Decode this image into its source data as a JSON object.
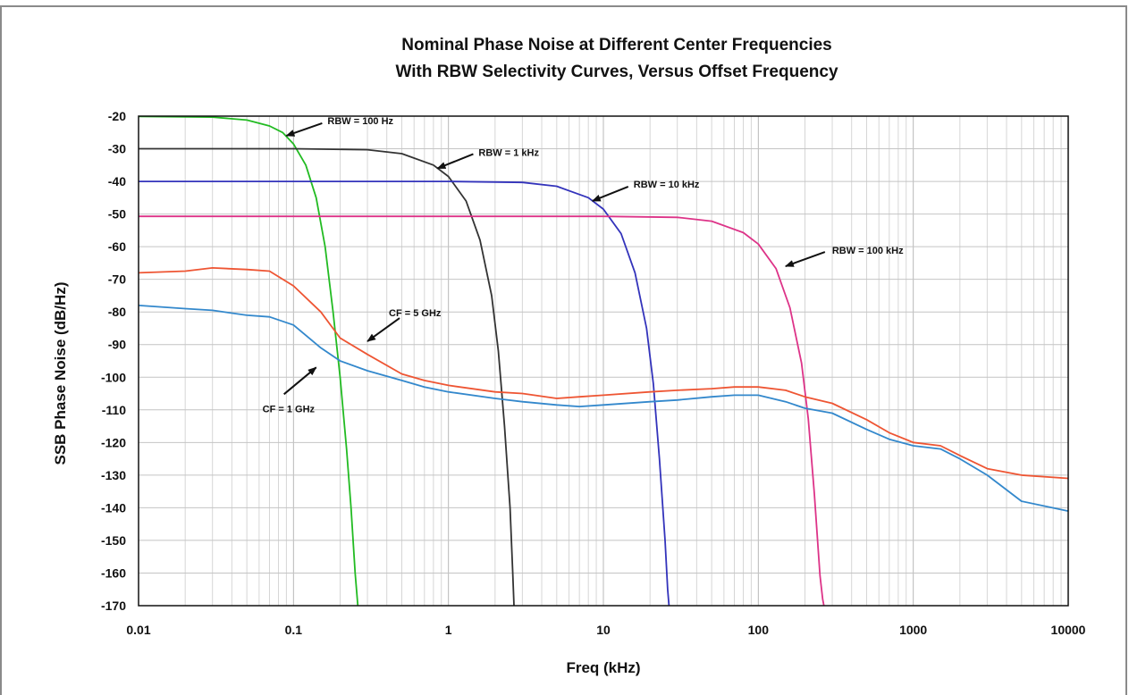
{
  "chart_data": {
    "type": "line",
    "title": "Nominal Phase Noise at Different Center Frequencies",
    "subtitle": "With RBW Selectivity Curves,  Versus Offset Frequency",
    "xlabel": "Freq (kHz)",
    "ylabel": "SSB Phase Noise (dB/Hz)",
    "x_scale": "log",
    "xlim": [
      0.01,
      10000
    ],
    "ylim": [
      -170,
      -20
    ],
    "grid": true,
    "x_tick_labels": [
      "0.01",
      "0.1",
      "1",
      "10",
      "100",
      "1000",
      "10000"
    ],
    "x_ticks": [
      0.01,
      0.1,
      1,
      10,
      100,
      1000,
      10000
    ],
    "y_tick_labels": [
      "-20",
      "-30",
      "-40",
      "-50",
      "-60",
      "-70",
      "-80",
      "-90",
      "-100",
      "-110",
      "-120",
      "-130",
      "-140",
      "-150",
      "-160",
      "-170"
    ],
    "y_ticks": [
      -20,
      -30,
      -40,
      -50,
      -60,
      -70,
      -80,
      -90,
      -100,
      -110,
      -120,
      -130,
      -140,
      -150,
      -160,
      -170
    ],
    "series": [
      {
        "color": "#22bb22",
        "x": [
          0.01,
          0.03,
          0.05,
          0.07,
          0.085,
          0.1,
          0.12,
          0.14,
          0.16,
          0.18,
          0.2,
          0.22,
          0.235,
          0.25,
          0.26
        ],
        "y": [
          -20.1,
          -20.3,
          -21.2,
          -23.0,
          -25.0,
          -28.5,
          -35.0,
          -45.0,
          -60.0,
          -80.0,
          -100.0,
          -122.0,
          -140.0,
          -160.0,
          -170.0
        ]
      },
      {
        "color": "#333333",
        "x": [
          0.01,
          0.1,
          0.3,
          0.5,
          0.8,
          1.0,
          1.3,
          1.6,
          1.9,
          2.1,
          2.3,
          2.5,
          2.6,
          2.65
        ],
        "y": [
          -30.0,
          -30.0,
          -30.3,
          -31.5,
          -35.0,
          -38.5,
          -46.0,
          -58.0,
          -75.0,
          -92.0,
          -115.0,
          -140.0,
          -160.0,
          -170.0
        ]
      },
      {
        "color": "#3333bb",
        "x": [
          0.01,
          1.0,
          3.0,
          5.0,
          8.0,
          10.0,
          13.0,
          16.0,
          19.0,
          21.0,
          23.0,
          25.0,
          26.0,
          26.5
        ],
        "y": [
          -40.0,
          -40.0,
          -40.3,
          -41.5,
          -45.0,
          -48.5,
          -56.0,
          -68.0,
          -85.0,
          -102.0,
          -125.0,
          -150.0,
          -165.0,
          -170.0
        ]
      },
      {
        "color": "#dd3388",
        "x": [
          0.01,
          10.0,
          30.0,
          50.0,
          80.0,
          100.0,
          130.0,
          160.0,
          190.0,
          210.0,
          230.0,
          250.0,
          260.0,
          265.0
        ],
        "y": [
          -50.7,
          -50.7,
          -51.0,
          -52.2,
          -55.7,
          -59.2,
          -66.7,
          -78.7,
          -95.7,
          -112.7,
          -135.7,
          -160.7,
          -168.0,
          -170.0
        ]
      },
      {
        "name": "CF = 5 GHz",
        "color": "#ee5533",
        "x": [
          0.01,
          0.02,
          0.03,
          0.05,
          0.07,
          0.1,
          0.15,
          0.2,
          0.3,
          0.5,
          0.7,
          1.0,
          2.0,
          3.0,
          5.0,
          7.0,
          10.0,
          20.0,
          30.0,
          50.0,
          70.0,
          100.0,
          150.0,
          200.0,
          300.0,
          500.0,
          700.0,
          1000.0,
          1500.0,
          2000.0,
          3000.0,
          5000.0,
          10000.0
        ],
        "y": [
          -68.0,
          -67.5,
          -66.5,
          -67.0,
          -67.5,
          -72.0,
          -80.0,
          -88.0,
          -93.0,
          -99.0,
          -101.0,
          -102.5,
          -104.5,
          -105.0,
          -106.5,
          -106.0,
          -105.5,
          -104.5,
          -104.0,
          -103.5,
          -103.0,
          -103.0,
          -104.0,
          -106.0,
          -108.0,
          -113.0,
          -117.0,
          -120.0,
          -121.0,
          -124.0,
          -128.0,
          -130.0,
          -131.0
        ]
      },
      {
        "name": "CF = 1 GHz",
        "color": "#3388cc",
        "x": [
          0.01,
          0.02,
          0.03,
          0.05,
          0.07,
          0.1,
          0.15,
          0.2,
          0.3,
          0.5,
          0.7,
          1.0,
          2.0,
          3.0,
          5.0,
          7.0,
          10.0,
          20.0,
          30.0,
          50.0,
          70.0,
          100.0,
          150.0,
          200.0,
          300.0,
          500.0,
          700.0,
          1000.0,
          1500.0,
          2000.0,
          3000.0,
          5000.0,
          10000.0
        ],
        "y": [
          -78.0,
          -79.0,
          -79.5,
          -81.0,
          -81.5,
          -84.0,
          -91.0,
          -95.0,
          -98.0,
          -101.0,
          -103.0,
          -104.5,
          -106.5,
          -107.5,
          -108.5,
          -109.0,
          -108.5,
          -107.5,
          -107.0,
          -106.0,
          -105.5,
          -105.5,
          -107.5,
          -109.5,
          -111.0,
          -116.0,
          -119.0,
          -121.0,
          -122.0,
          -125.0,
          -130.0,
          -138.0,
          -141.0
        ]
      }
    ],
    "annotations": [
      {
        "text": "RBW = 100 Hz",
        "x": 0.09,
        "y": -26
      },
      {
        "text": "RBW = 1 kHz",
        "x": 0.85,
        "y": -36
      },
      {
        "text": "RBW = 10 kHz",
        "x": 8.5,
        "y": -46
      },
      {
        "text": "RBW = 100 kHz",
        "x": 150,
        "y": -66
      },
      {
        "text": "CF = 5 GHz",
        "x": 0.3,
        "y": -89
      },
      {
        "text": "CF = 1 GHz",
        "x": 0.14,
        "y": -97
      }
    ]
  }
}
